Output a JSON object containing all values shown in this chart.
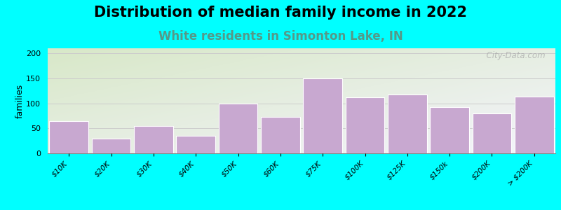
{
  "title": "Distribution of median family income in 2022",
  "subtitle": "White residents in Simonton Lake, IN",
  "ylabel": "families",
  "categories": [
    "$10K",
    "$20K",
    "$30K",
    "$40K",
    "$50K",
    "$60K",
    "$75K",
    "$100K",
    "$125K",
    "$150k",
    "$200K",
    "> $200K"
  ],
  "values": [
    65,
    30,
    55,
    35,
    100,
    73,
    150,
    112,
    118,
    92,
    80,
    113
  ],
  "bar_color": "#C8A8D0",
  "ylim": [
    0,
    210
  ],
  "yticks": [
    0,
    50,
    100,
    150,
    200
  ],
  "background_outer": "#00FFFF",
  "background_inner_left_top": "#D8E8C8",
  "background_inner_right_bottom": "#F0F0F8",
  "title_fontsize": 15,
  "subtitle_fontsize": 12,
  "subtitle_color": "#559988",
  "watermark": "  City-Data.com",
  "grid_color": "#CCCCCC"
}
